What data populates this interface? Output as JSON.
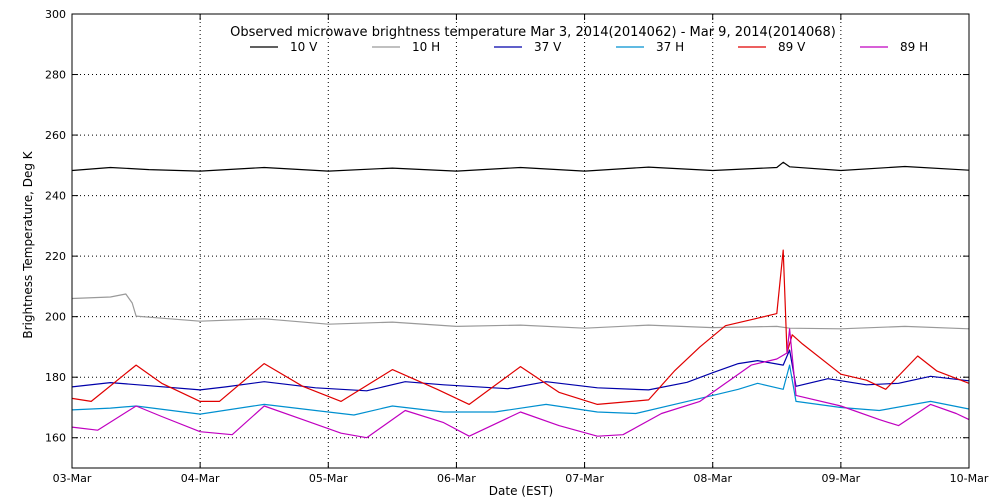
{
  "chart_data": {
    "type": "line",
    "title": "Observed microwave brightness temperature Mar  3, 2014(2014062) - Mar  9, 2014(2014068)",
    "xlabel": "Date (EST)",
    "ylabel": "Brightness Temperature, Deg K",
    "ylim": [
      150,
      300
    ],
    "yticks": [
      160,
      180,
      200,
      220,
      240,
      260,
      280,
      300
    ],
    "xlim": [
      0,
      7
    ],
    "xticks": [
      "03-Mar",
      "04-Mar",
      "05-Mar",
      "06-Mar",
      "07-Mar",
      "08-Mar",
      "09-Mar",
      "10-Mar"
    ],
    "grid": true,
    "legend_position": "top-center",
    "series": [
      {
        "name": "10 V",
        "color": "#000000",
        "x": [
          0,
          0.3,
          0.6,
          1.0,
          1.5,
          2.0,
          2.5,
          3.0,
          3.5,
          4.0,
          4.5,
          5.0,
          5.5,
          5.55,
          5.6,
          6.0,
          6.5,
          7.0
        ],
        "y": [
          248.3,
          249.3,
          248.6,
          248.1,
          249.3,
          248.1,
          249.1,
          248.1,
          249.3,
          248.1,
          249.4,
          248.3,
          249.3,
          251.0,
          249.5,
          248.3,
          249.6,
          248.4
        ]
      },
      {
        "name": "10 H",
        "color": "#9a9a9a",
        "x": [
          0,
          0.3,
          0.42,
          0.47,
          0.5,
          0.7,
          1.0,
          1.5,
          2.0,
          2.5,
          3.0,
          3.5,
          4.0,
          4.5,
          5.0,
          5.5,
          5.6,
          6.0,
          6.5,
          7.0
        ],
        "y": [
          206,
          206.5,
          207.5,
          204.5,
          200.2,
          199.5,
          198.5,
          199.3,
          197.5,
          198.2,
          196.8,
          197.2,
          196.2,
          197.2,
          196.4,
          196.8,
          196.2,
          196,
          196.8,
          196
        ]
      },
      {
        "name": "37 V",
        "color": "#0000aa",
        "x": [
          0,
          0.3,
          0.6,
          1.0,
          1.2,
          1.5,
          1.9,
          2.3,
          2.6,
          2.9,
          3.4,
          3.7,
          4.1,
          4.5,
          4.8,
          5.0,
          5.2,
          5.35,
          5.55,
          5.6,
          5.65,
          5.9,
          6.2,
          6.45,
          6.7,
          7.0
        ],
        "y": [
          176.8,
          178.2,
          177.2,
          175.8,
          176.8,
          178.5,
          176.5,
          175.5,
          178.5,
          177.5,
          176.2,
          178.5,
          176.5,
          175.8,
          178.3,
          181.5,
          184.5,
          185.5,
          184.0,
          189.0,
          177.0,
          179.5,
          177.5,
          178.0,
          180.3,
          178.8
        ]
      },
      {
        "name": "37 H",
        "color": "#0090d0",
        "x": [
          0,
          0.3,
          0.5,
          1.0,
          1.5,
          1.9,
          2.2,
          2.5,
          2.9,
          3.3,
          3.7,
          4.1,
          4.4,
          4.8,
          5.0,
          5.2,
          5.35,
          5.55,
          5.6,
          5.65,
          6.0,
          6.3,
          6.7,
          7.0
        ],
        "y": [
          169.2,
          169.8,
          170.5,
          167.8,
          171.0,
          169.0,
          167.5,
          170.5,
          168.5,
          168.5,
          171.0,
          168.5,
          168.0,
          172.0,
          174.0,
          176.0,
          178.0,
          176.0,
          184.0,
          172.0,
          170.0,
          169.0,
          172.0,
          169.5
        ]
      },
      {
        "name": "89 V",
        "color": "#e00000",
        "x": [
          0,
          0.15,
          0.5,
          0.7,
          1.0,
          1.15,
          1.5,
          1.8,
          2.1,
          2.5,
          2.85,
          3.1,
          3.5,
          3.8,
          4.1,
          4.5,
          4.7,
          4.9,
          5.1,
          5.3,
          5.5,
          5.55,
          5.58,
          5.62,
          5.7,
          6.0,
          6.2,
          6.35,
          6.6,
          6.75,
          7.0
        ],
        "y": [
          173.0,
          172.0,
          184.0,
          178.0,
          172.0,
          172.0,
          184.5,
          177.0,
          172.0,
          182.5,
          176.0,
          171.0,
          183.5,
          175.0,
          171.0,
          172.5,
          182.0,
          190.0,
          197.0,
          199.0,
          201.0,
          222.0,
          188.0,
          194.0,
          191.0,
          181.0,
          179.0,
          176.0,
          187.0,
          182.0,
          178.0
        ]
      },
      {
        "name": "89 H",
        "color": "#c000c0",
        "x": [
          0,
          0.2,
          0.5,
          0.7,
          1.0,
          1.25,
          1.5,
          1.8,
          2.1,
          2.3,
          2.6,
          2.9,
          3.1,
          3.5,
          3.8,
          4.1,
          4.3,
          4.6,
          4.9,
          5.1,
          5.3,
          5.5,
          5.58,
          5.6,
          5.65,
          6.0,
          6.3,
          6.45,
          6.7,
          6.9,
          7.0
        ],
        "y": [
          163.5,
          162.5,
          170.5,
          167.0,
          162.0,
          161.0,
          170.5,
          166.0,
          161.5,
          160.0,
          169.0,
          165.0,
          160.5,
          168.5,
          164.0,
          160.5,
          161.0,
          168.0,
          172.0,
          178.0,
          184.0,
          186.0,
          188.0,
          196.0,
          174.0,
          170.5,
          166.0,
          164.0,
          171.0,
          168.0,
          166.0
        ]
      }
    ]
  }
}
